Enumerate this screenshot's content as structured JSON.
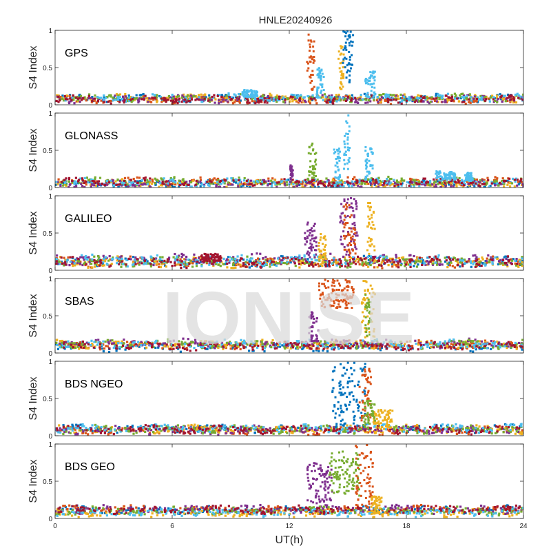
{
  "figure": {
    "title": "HNLE20240926",
    "watermark": "IONISE"
  },
  "colors": [
    "#0072bd",
    "#d95319",
    "#edb120",
    "#7e2f8e",
    "#77ac30",
    "#4dbeee",
    "#a2142f"
  ],
  "chart_data": [
    {
      "type": "scatter",
      "constellation": "GPS",
      "title": "",
      "xlabel": "",
      "ylabel": "S4 Index",
      "xlim": [
        0,
        24
      ],
      "ylim": [
        0,
        1
      ],
      "x_ticks": [],
      "y_ticks": [
        "0",
        "0.5",
        "1"
      ],
      "baseline_range": [
        0.03,
        0.13
      ],
      "bursts": [
        {
          "series": 1,
          "x_range": [
            12.9,
            13.3
          ],
          "y_range": [
            0.15,
            0.95
          ]
        },
        {
          "series": 2,
          "x_range": [
            14.5,
            14.8
          ],
          "y_range": [
            0.2,
            0.8
          ]
        },
        {
          "series": 0,
          "x_range": [
            14.7,
            15.3
          ],
          "y_range": [
            0.3,
            0.99
          ]
        },
        {
          "series": 5,
          "x_range": [
            13.4,
            13.8
          ],
          "y_range": [
            0.12,
            0.5
          ]
        },
        {
          "series": 5,
          "x_range": [
            15.9,
            16.4
          ],
          "y_range": [
            0.1,
            0.47
          ]
        },
        {
          "series": 5,
          "x_range": [
            9.6,
            10.4
          ],
          "y_range": [
            0.1,
            0.2
          ]
        }
      ]
    },
    {
      "type": "scatter",
      "constellation": "GLONASS",
      "title": "",
      "xlabel": "",
      "ylabel": "S4 Index",
      "xlim": [
        0,
        24
      ],
      "ylim": [
        0,
        1
      ],
      "x_ticks": [],
      "y_ticks": [
        "0",
        "0.5",
        "1"
      ],
      "baseline_range": [
        0.02,
        0.12
      ],
      "bursts": [
        {
          "series": 3,
          "x_range": [
            12.0,
            12.2
          ],
          "y_range": [
            0.05,
            0.3
          ]
        },
        {
          "series": 4,
          "x_range": [
            13.0,
            13.4
          ],
          "y_range": [
            0.1,
            0.6
          ]
        },
        {
          "series": 5,
          "x_range": [
            14.3,
            14.6
          ],
          "y_range": [
            0.1,
            0.55
          ]
        },
        {
          "series": 5,
          "x_range": [
            14.8,
            15.1
          ],
          "y_range": [
            0.2,
            0.98
          ]
        },
        {
          "series": 5,
          "x_range": [
            15.9,
            16.3
          ],
          "y_range": [
            0.1,
            0.55
          ]
        },
        {
          "series": 5,
          "x_range": [
            19.5,
            20.5
          ],
          "y_range": [
            0.1,
            0.22
          ]
        },
        {
          "series": 5,
          "x_range": [
            21.0,
            21.4
          ],
          "y_range": [
            0.1,
            0.2
          ]
        }
      ]
    },
    {
      "type": "scatter",
      "constellation": "GALILEO",
      "title": "",
      "xlabel": "",
      "ylabel": "S4 Index",
      "xlim": [
        0,
        24
      ],
      "ylim": [
        0,
        1
      ],
      "x_ticks": [],
      "y_ticks": [
        "0",
        "0.5",
        "1"
      ],
      "baseline_range": [
        0.04,
        0.2
      ],
      "bursts": [
        {
          "series": 3,
          "x_range": [
            12.8,
            13.4
          ],
          "y_range": [
            0.15,
            0.65
          ]
        },
        {
          "series": 2,
          "x_range": [
            13.5,
            13.9
          ],
          "y_range": [
            0.1,
            0.5
          ]
        },
        {
          "series": 3,
          "x_range": [
            14.6,
            15.5
          ],
          "y_range": [
            0.2,
            0.98
          ]
        },
        {
          "series": 1,
          "x_range": [
            14.8,
            15.4
          ],
          "y_range": [
            0.2,
            0.9
          ]
        },
        {
          "series": 2,
          "x_range": [
            16.0,
            16.4
          ],
          "y_range": [
            0.1,
            0.92
          ]
        },
        {
          "series": 6,
          "x_range": [
            7.5,
            8.5
          ],
          "y_range": [
            0.12,
            0.22
          ]
        }
      ]
    },
    {
      "type": "scatter",
      "constellation": "SBAS",
      "title": "",
      "xlabel": "",
      "ylabel": "S4 Index",
      "xlim": [
        0,
        24
      ],
      "ylim": [
        0,
        1
      ],
      "x_ticks": [],
      "y_ticks": [
        "0",
        "0.5",
        "1"
      ],
      "baseline_range": [
        0.04,
        0.16
      ],
      "bursts": [
        {
          "series": 3,
          "x_range": [
            13.0,
            13.5
          ],
          "y_range": [
            0.15,
            0.55
          ]
        },
        {
          "series": 1,
          "x_range": [
            13.5,
            15.3
          ],
          "y_range": [
            0.6,
            0.99
          ]
        },
        {
          "series": 2,
          "x_range": [
            15.7,
            16.4
          ],
          "y_range": [
            0.2,
            0.99
          ]
        },
        {
          "series": 4,
          "x_range": [
            15.9,
            16.2
          ],
          "y_range": [
            0.2,
            0.85
          ]
        }
      ]
    },
    {
      "type": "scatter",
      "constellation": "BDS NGEO",
      "title": "",
      "xlabel": "",
      "ylabel": "S4 Index",
      "xlim": [
        0,
        24
      ],
      "ylim": [
        0,
        1
      ],
      "x_ticks": [],
      "y_ticks": [
        "0",
        "0.5",
        "1"
      ],
      "baseline_range": [
        0.03,
        0.14
      ],
      "bursts": [
        {
          "series": 0,
          "x_range": [
            14.2,
            15.9
          ],
          "y_range": [
            0.1,
            0.99
          ]
        },
        {
          "series": 2,
          "x_range": [
            16.3,
            17.3
          ],
          "y_range": [
            0.1,
            0.35
          ]
        },
        {
          "series": 1,
          "x_range": [
            15.6,
            16.2
          ],
          "y_range": [
            0.2,
            0.9
          ]
        },
        {
          "series": 4,
          "x_range": [
            15.8,
            16.4
          ],
          "y_range": [
            0.1,
            0.5
          ]
        }
      ]
    },
    {
      "type": "scatter",
      "constellation": "BDS GEO",
      "title": "",
      "xlabel": "UT(h)",
      "ylabel": "S4 Index",
      "xlim": [
        0,
        24
      ],
      "ylim": [
        0,
        1
      ],
      "x_ticks": [
        "0",
        "6",
        "12",
        "18",
        "24"
      ],
      "y_ticks": [
        "0",
        "0.5",
        "1"
      ],
      "baseline_range": [
        0.04,
        0.15
      ],
      "bursts": [
        {
          "series": 3,
          "x_range": [
            12.9,
            14.2
          ],
          "y_range": [
            0.2,
            0.75
          ]
        },
        {
          "series": 4,
          "x_range": [
            14.0,
            15.6
          ],
          "y_range": [
            0.3,
            0.9
          ]
        },
        {
          "series": 1,
          "x_range": [
            15.4,
            16.3
          ],
          "y_range": [
            0.15,
            0.99
          ]
        },
        {
          "series": 2,
          "x_range": [
            16.2,
            16.8
          ],
          "y_range": [
            0.05,
            0.3
          ]
        }
      ]
    }
  ]
}
